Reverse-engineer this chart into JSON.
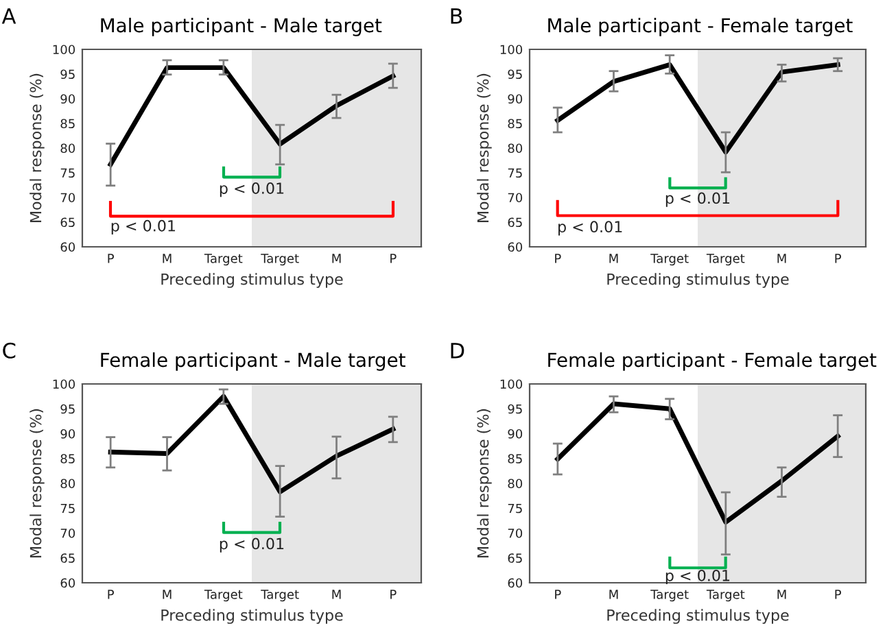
{
  "chart_data": [
    {
      "type": "line",
      "title": "Male participant - Male target",
      "xlabel": "Preceding stimulus type",
      "ylabel": "Modal response (%)",
      "categories": [
        "P",
        "M",
        "Target",
        "Target",
        "M",
        "P"
      ],
      "series": [
        {
          "color": "#000000",
          "values": [
            76.7,
            96.3,
            96.3,
            80.8,
            88.6,
            94.6
          ],
          "errors": [
            [
              72.4,
              80.9
            ],
            [
              94.9,
              97.8
            ],
            [
              94.9,
              97.8
            ],
            [
              76.7,
              84.7
            ],
            [
              86.1,
              90.8
            ],
            [
              92.2,
              97.1
            ]
          ]
        }
      ],
      "ylim": [
        60,
        100
      ],
      "yticks": [
        60,
        65,
        70,
        75,
        80,
        85,
        90,
        95,
        100
      ],
      "grid": false,
      "marker": "none",
      "line_style": "solid",
      "annotations": [
        "A",
        "p < 0.01",
        "p < 0.01"
      ]
    },
    {
      "type": "line",
      "title": "Male participant - Female target",
      "xlabel": "Preceding stimulus type",
      "ylabel": "Modal response (%)",
      "categories": [
        "P",
        "M",
        "Target",
        "Target",
        "M",
        "P"
      ],
      "series": [
        {
          "color": "#000000",
          "values": [
            85.6,
            93.5,
            96.9,
            79.2,
            95.4,
            96.9
          ],
          "errors": [
            [
              83.2,
              88.2
            ],
            [
              91.5,
              95.6
            ],
            [
              95.1,
              98.8
            ],
            [
              75.1,
              83.2
            ],
            [
              93.5,
              96.9
            ],
            [
              95.6,
              98.2
            ]
          ]
        }
      ],
      "ylim": [
        60,
        100
      ],
      "yticks": [
        60,
        65,
        70,
        75,
        80,
        85,
        90,
        95,
        100
      ],
      "grid": false,
      "marker": "none",
      "line_style": "solid",
      "annotations": [
        "B",
        "p < 0.01",
        "p < 0.01"
      ]
    },
    {
      "type": "line",
      "title": "Female participant - Male target",
      "xlabel": "Preceding stimulus type",
      "ylabel": "Modal response (%)",
      "categories": [
        "P",
        "M",
        "Target",
        "Target",
        "M",
        "P"
      ],
      "series": [
        {
          "color": "#000000",
          "values": [
            86.3,
            86.0,
            97.5,
            78.3,
            85.5,
            90.9
          ],
          "errors": [
            [
              83.2,
              89.3
            ],
            [
              82.6,
              89.3
            ],
            [
              96.0,
              98.9
            ],
            [
              73.3,
              83.5
            ],
            [
              81.0,
              89.4
            ],
            [
              88.3,
              93.4
            ]
          ]
        }
      ],
      "ylim": [
        60,
        100
      ],
      "yticks": [
        60,
        65,
        70,
        75,
        80,
        85,
        90,
        95,
        100
      ],
      "grid": false,
      "marker": "none",
      "line_style": "solid",
      "annotations": [
        "C",
        "p < 0.01"
      ]
    },
    {
      "type": "line",
      "title": "Female participant - Female target",
      "xlabel": "Preceding stimulus type",
      "ylabel": "Modal response (%)",
      "categories": [
        "P",
        "M",
        "Target",
        "Target",
        "M",
        "P"
      ],
      "series": [
        {
          "color": "#000000",
          "values": [
            84.9,
            96.0,
            95.0,
            72.2,
            80.5,
            89.5
          ],
          "errors": [
            [
              81.8,
              88.0
            ],
            [
              94.3,
              97.5
            ],
            [
              92.9,
              97.0
            ],
            [
              65.7,
              78.2
            ],
            [
              77.3,
              83.2
            ],
            [
              85.3,
              93.7
            ]
          ]
        }
      ],
      "ylim": [
        60,
        100
      ],
      "yticks": [
        60,
        65,
        70,
        75,
        80,
        85,
        90,
        95,
        100
      ],
      "grid": false,
      "marker": "none",
      "line_style": "solid",
      "annotations": [
        "D",
        "p < 0.01"
      ]
    }
  ]
}
